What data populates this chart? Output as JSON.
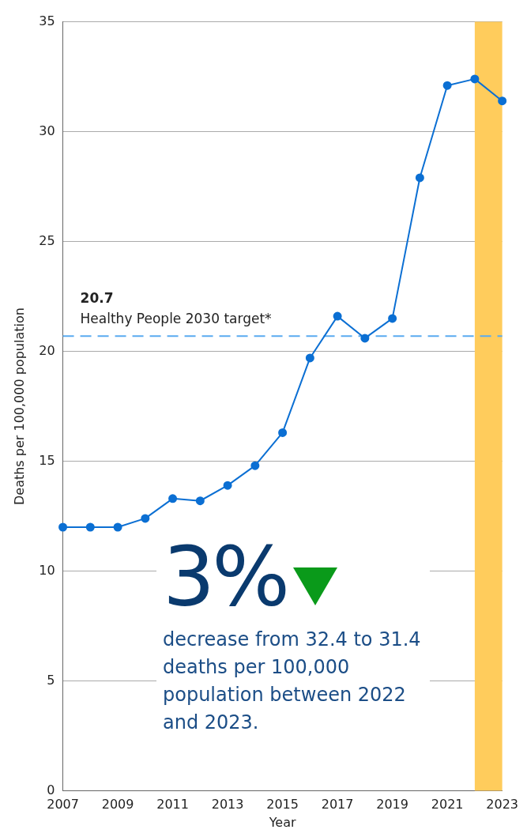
{
  "chart_data": {
    "type": "line",
    "xlabel": "Year",
    "ylabel": "Deaths per 100,000 population",
    "x": [
      2007,
      2008,
      2009,
      2010,
      2011,
      2012,
      2013,
      2014,
      2015,
      2016,
      2017,
      2018,
      2019,
      2020,
      2021,
      2022,
      2023
    ],
    "series": [
      {
        "color": "#0b6fd3",
        "values": [
          12.0,
          12.0,
          12.0,
          12.4,
          13.3,
          13.2,
          13.9,
          14.8,
          16.3,
          19.7,
          21.6,
          20.6,
          21.5,
          27.9,
          32.1,
          32.4,
          31.4
        ]
      }
    ],
    "xlim": [
      2007,
      2023
    ],
    "xticks": [
      2007,
      2009,
      2011,
      2013,
      2015,
      2017,
      2019,
      2021,
      2023
    ],
    "ylim": [
      0,
      35
    ],
    "yticks": [
      0,
      5,
      10,
      15,
      20,
      25,
      30,
      35
    ],
    "grid": "y",
    "marker": "circle",
    "line_style": "solid",
    "legend": false,
    "ref_lines": [
      {
        "axis": "y",
        "value": 20.7,
        "label": "Healthy People 2030 target*",
        "color": "#5aaaf0",
        "line_style": "dashed"
      }
    ],
    "bands": [
      {
        "axis": "x",
        "from": 2022,
        "to": 2023,
        "color": "#ffcc5c"
      }
    ],
    "annotations": [
      {
        "text": "20.7",
        "y": 20.7
      },
      "3%",
      "decrease from 32.4 to 31.4 deaths per 100,000 population between 2022 and 2023."
    ]
  }
}
